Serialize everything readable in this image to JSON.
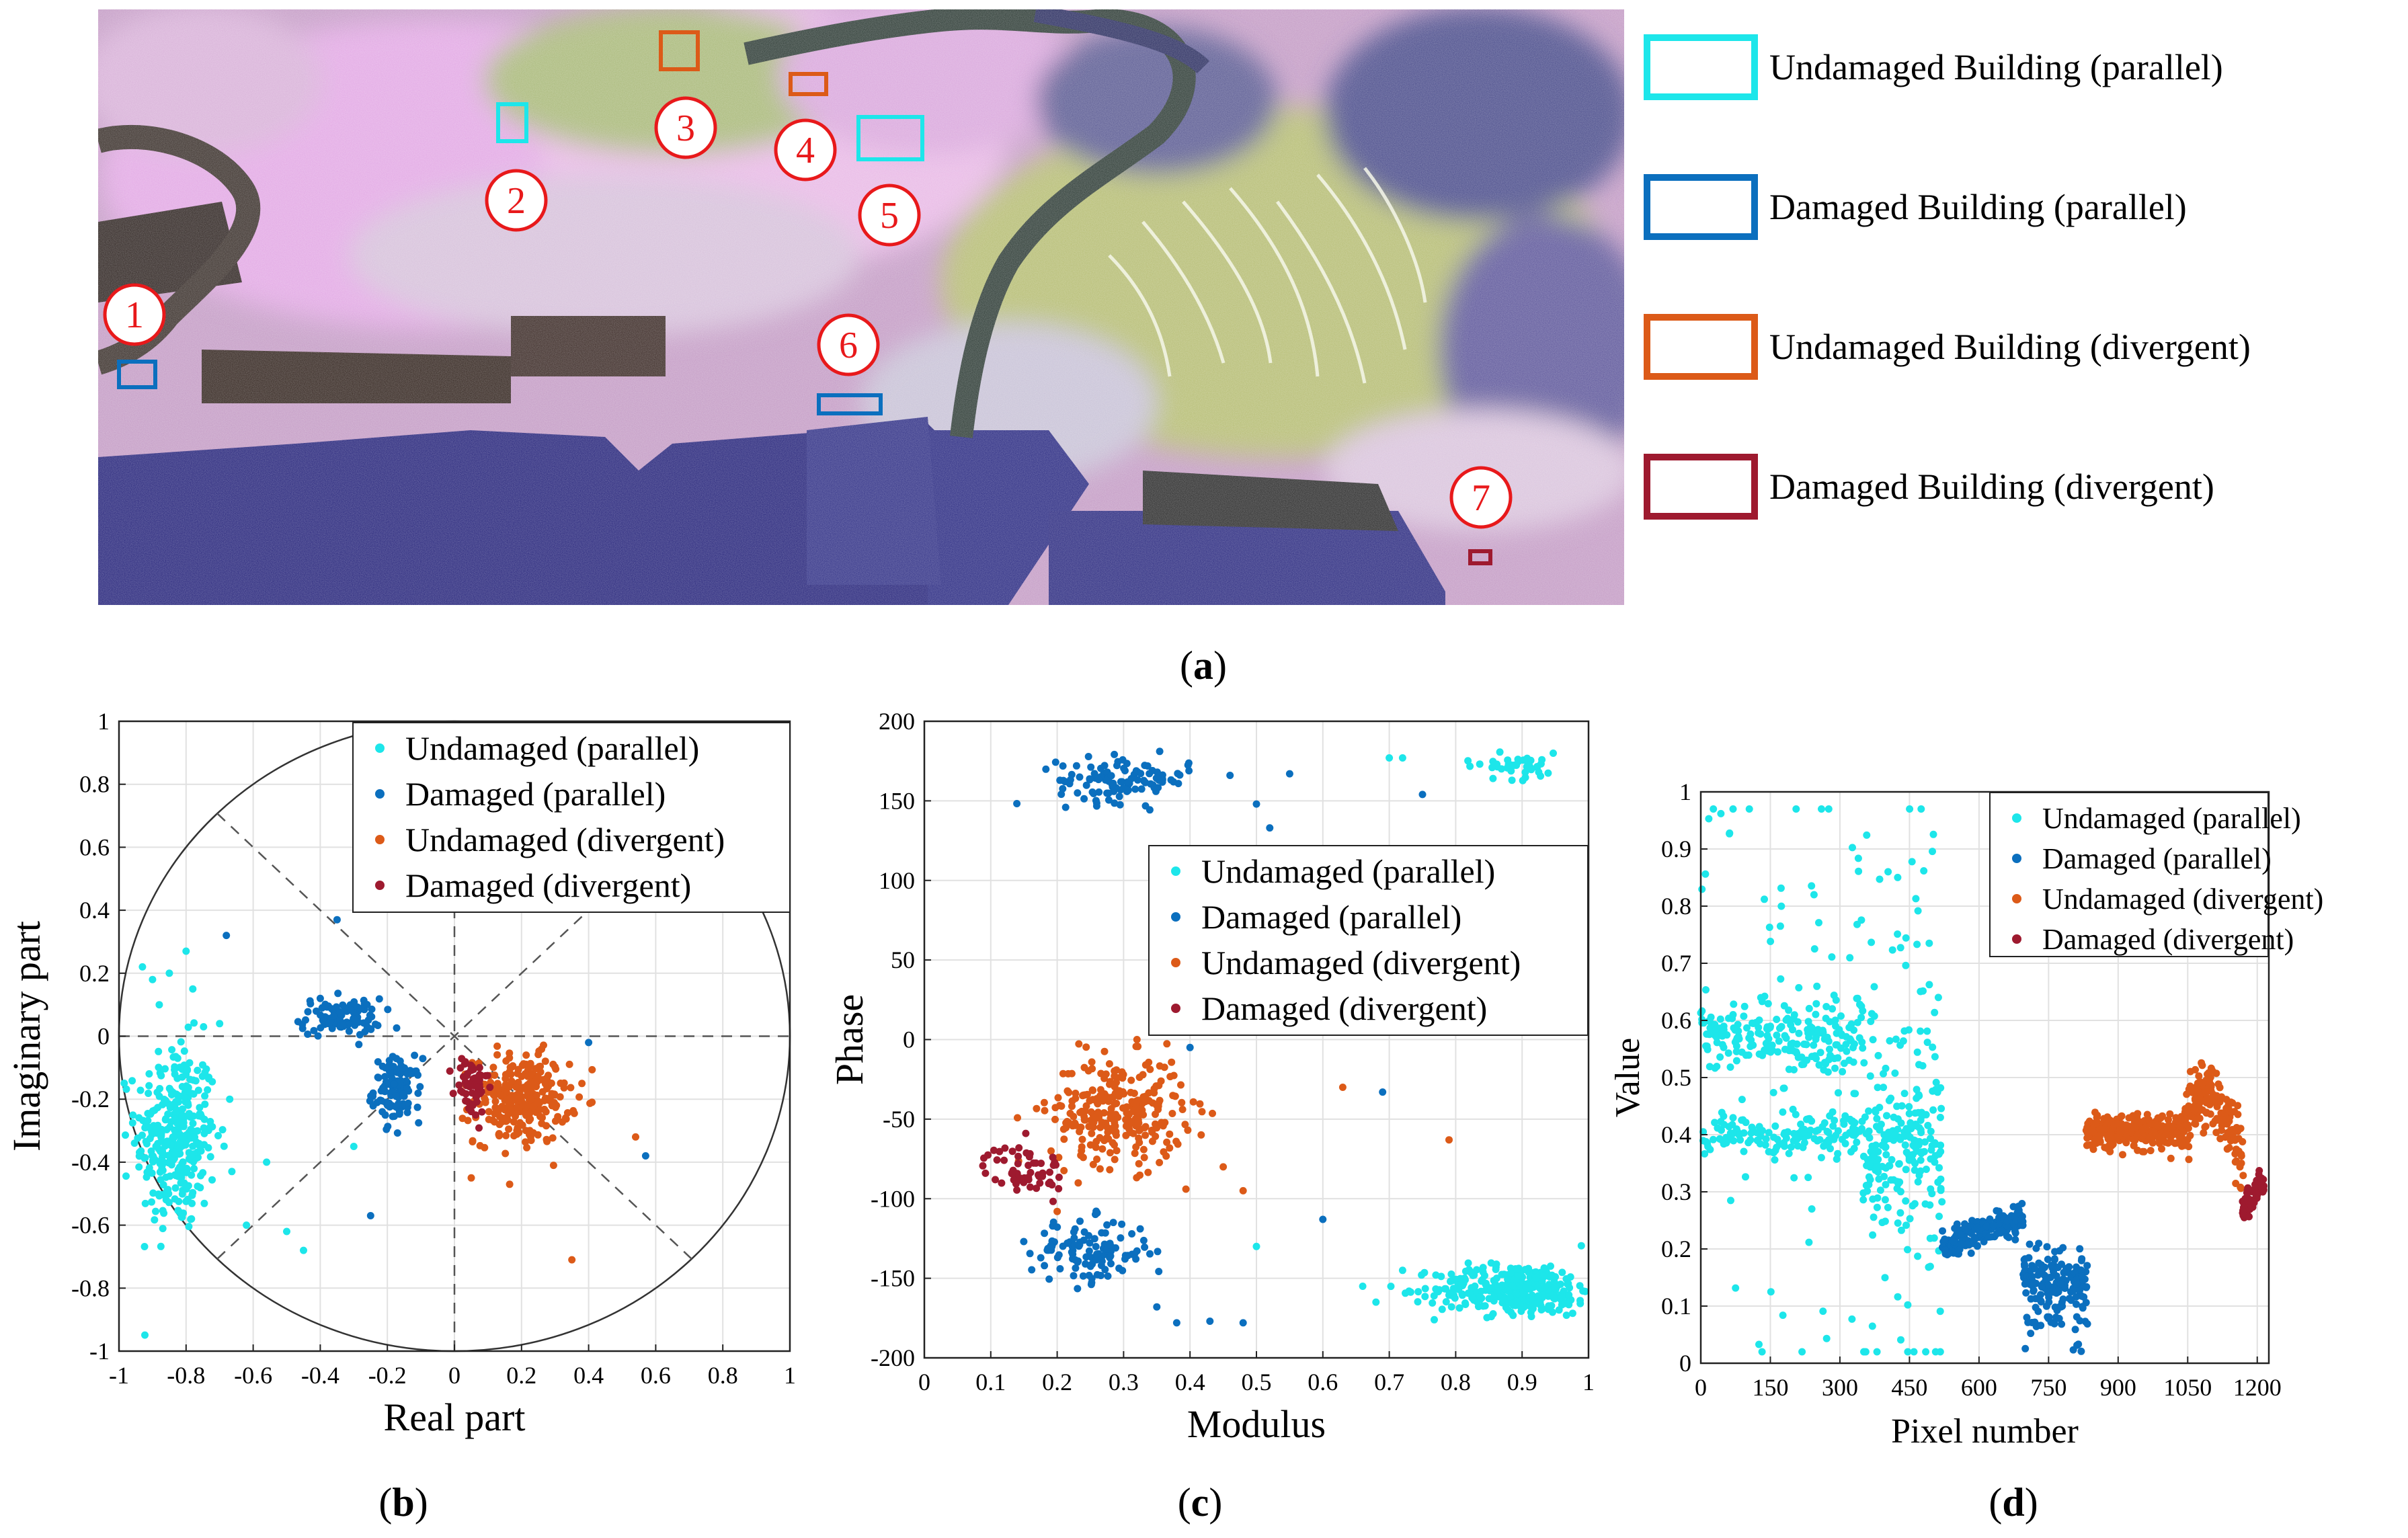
{
  "colors": {
    "undamaged_parallel": "#1de6ea",
    "damaged_parallel": "#0b6fbe",
    "undamaged_divergent": "#dc5a18",
    "damaged_divergent": "#9e1a2f",
    "marker_red": "#e8191b"
  },
  "panel_a": {
    "caption_open": "(",
    "caption_letter": "a",
    "caption_close": ")",
    "markers": [
      "1",
      "2",
      "3",
      "4",
      "5",
      "6",
      "7"
    ],
    "legend": [
      {
        "label": "Undamaged Building (parallel)",
        "color": "#1de6ea"
      },
      {
        "label": "Damaged Building (parallel)",
        "color": "#0b6fbe"
      },
      {
        "label": "Undamaged Building (divergent)",
        "color": "#dc5a18"
      },
      {
        "label": "Damaged Building (divergent)",
        "color": "#9e1a2f"
      }
    ]
  },
  "series_names": [
    "Undamaged (parallel)",
    "Damaged (parallel)",
    "Undamaged (divergent)",
    "Damaged (divergent)"
  ],
  "chart_data": [
    {
      "id": "b",
      "type": "scatter",
      "title": "",
      "caption_letter": "b",
      "xlabel": "Real part",
      "ylabel": "Imaginary part",
      "xlim": [
        -1,
        1
      ],
      "ylim": [
        -1,
        1
      ],
      "xticks": [
        -1,
        -0.8,
        -0.6,
        -0.4,
        -0.2,
        0,
        0.2,
        0.4,
        0.6,
        0.8,
        1
      ],
      "yticks": [
        -1,
        -0.8,
        -0.6,
        -0.4,
        -0.2,
        0,
        0.2,
        0.4,
        0.6,
        0.8,
        1
      ],
      "grid": true,
      "unit_circle": true,
      "legend_position": "top-right",
      "series": [
        {
          "name": "Undamaged (parallel)",
          "color": "#1de6ea",
          "clusters": [
            {
              "cx": -0.83,
              "cy": -0.32,
              "sx": 0.06,
              "sy": 0.15,
              "n": 330
            }
          ],
          "outliers": [
            [
              -0.93,
              0.22
            ],
            [
              -0.9,
              0.18
            ],
            [
              -0.88,
              0.1
            ],
            [
              -0.85,
              0.2
            ],
            [
              -0.8,
              0.27
            ],
            [
              -0.78,
              0.15
            ],
            [
              -0.7,
              0.04
            ],
            [
              -0.62,
              -0.6
            ],
            [
              -0.5,
              -0.62
            ],
            [
              -0.45,
              -0.68
            ],
            [
              -0.3,
              -0.35
            ],
            [
              -0.56,
              -0.4
            ],
            [
              -0.67,
              -0.2
            ]
          ]
        },
        {
          "name": "Damaged (parallel)",
          "color": "#0b6fbe",
          "clusters": [
            {
              "cx": -0.34,
              "cy": 0.06,
              "sx": 0.06,
              "sy": 0.03,
              "n": 90
            },
            {
              "cx": -0.17,
              "cy": -0.17,
              "sx": 0.035,
              "sy": 0.05,
              "n": 110
            }
          ],
          "outliers": [
            [
              -0.68,
              0.32
            ],
            [
              -0.35,
              0.37
            ],
            [
              -0.25,
              -0.57
            ],
            [
              -0.4,
              0.12
            ],
            [
              0.4,
              -0.02
            ],
            [
              0.57,
              -0.38
            ]
          ]
        },
        {
          "name": "Undamaged (divergent)",
          "color": "#dc5a18",
          "clusters": [
            {
              "cx": 0.2,
              "cy": -0.2,
              "sx": 0.07,
              "sy": 0.07,
              "n": 260
            }
          ],
          "outliers": [
            [
              0.54,
              -0.32
            ],
            [
              0.35,
              -0.71
            ],
            [
              0.38,
              -0.15
            ],
            [
              0.05,
              -0.45
            ]
          ]
        },
        {
          "name": "Damaged (divergent)",
          "color": "#9e1a2f",
          "clusters": [
            {
              "cx": 0.05,
              "cy": -0.16,
              "sx": 0.025,
              "sy": 0.05,
              "n": 60
            }
          ],
          "outliers": []
        }
      ]
    },
    {
      "id": "c",
      "type": "scatter",
      "title": "",
      "caption_letter": "c",
      "xlabel": "Modulus",
      "ylabel": "Phase",
      "xlim": [
        0,
        1
      ],
      "ylim": [
        -200,
        200
      ],
      "xticks": [
        0,
        0.1,
        0.2,
        0.3,
        0.4,
        0.5,
        0.6,
        0.7,
        0.8,
        0.9,
        1
      ],
      "yticks": [
        -200,
        -150,
        -100,
        -50,
        0,
        50,
        100,
        150,
        200
      ],
      "grid": true,
      "legend_position": "center-right",
      "series": [
        {
          "name": "Undamaged (parallel)",
          "color": "#1de6ea",
          "clusters": [
            {
              "cx": 0.89,
              "cy": -157,
              "sx": 0.06,
              "sy": 8,
              "n": 330
            },
            {
              "cx": 0.89,
              "cy": 172,
              "sx": 0.04,
              "sy": 4,
              "n": 40
            }
          ],
          "outliers": [
            [
              0.5,
              -130
            ],
            [
              0.68,
              -165
            ],
            [
              0.72,
              -145
            ],
            [
              0.7,
              177
            ],
            [
              0.72,
              177
            ],
            [
              0.66,
              -155
            ]
          ]
        },
        {
          "name": "Damaged (parallel)",
          "color": "#0b6fbe",
          "clusters": [
            {
              "cx": 0.3,
              "cy": 163,
              "sx": 0.05,
              "sy": 7,
              "n": 110
            },
            {
              "cx": 0.25,
              "cy": -133,
              "sx": 0.045,
              "sy": 10,
              "n": 120
            }
          ],
          "outliers": [
            [
              0.35,
              -168
            ],
            [
              0.38,
              -178
            ],
            [
              0.43,
              -177
            ],
            [
              0.48,
              -178
            ],
            [
              0.4,
              -5
            ],
            [
              0.5,
              148
            ],
            [
              0.55,
              167
            ],
            [
              0.6,
              -113
            ],
            [
              0.69,
              -33
            ],
            [
              0.75,
              154
            ],
            [
              0.52,
              133
            ]
          ]
        },
        {
          "name": "Undamaged (divergent)",
          "color": "#dc5a18",
          "clusters": [
            {
              "cx": 0.29,
              "cy": -45,
              "sx": 0.05,
              "sy": 17,
              "n": 280
            }
          ],
          "outliers": [
            [
              0.2,
              -108
            ],
            [
              0.45,
              -80
            ],
            [
              0.48,
              -95
            ],
            [
              0.63,
              -30
            ],
            [
              0.79,
              -63
            ]
          ]
        },
        {
          "name": "Damaged (divergent)",
          "color": "#9e1a2f",
          "clusters": [
            {
              "cx": 0.15,
              "cy": -82,
              "sx": 0.03,
              "sy": 8,
              "n": 60
            }
          ],
          "outliers": []
        }
      ]
    },
    {
      "id": "d",
      "type": "scatter",
      "title": "",
      "caption_letter": "d",
      "xlabel": "Pixel number",
      "ylabel": "Value",
      "xlim": [
        0,
        1225
      ],
      "ylim": [
        0,
        1
      ],
      "xticks": [
        0,
        150,
        300,
        450,
        600,
        750,
        900,
        1050,
        1200
      ],
      "yticks": [
        0,
        0.1,
        0.2,
        0.3,
        0.4,
        0.5,
        0.6,
        0.7,
        0.8,
        0.9,
        1
      ],
      "grid": true,
      "legend_position": "top-right",
      "series": [
        {
          "name": "Undamaged (parallel)",
          "color": "#1de6ea",
          "segments": [
            {
              "x0": 0,
              "x1": 350,
              "n": 190,
              "level": 0.57,
              "jitter": 0.03
            },
            {
              "x0": 0,
              "x1": 350,
              "n": 140,
              "level": 0.4,
              "jitter": 0.02
            },
            {
              "x0": 0,
              "x1": 350,
              "n": 80,
              "level": 0.6,
              "jitter": 0.3
            },
            {
              "x0": 350,
              "x1": 520,
              "n": 170,
              "level": 0.38,
              "jitter": 0.06
            },
            {
              "x0": 350,
              "x1": 520,
              "n": 100,
              "level": 0.45,
              "jitter": 0.3
            }
          ]
        },
        {
          "name": "Damaged (parallel)",
          "color": "#0b6fbe",
          "segments": [
            {
              "x0": 520,
              "x1": 695,
              "n": 200,
              "level": 0.205,
              "slope": 0.05,
              "jitter": 0.012
            },
            {
              "x0": 695,
              "x1": 835,
              "n": 180,
              "level": 0.15,
              "jitter": 0.025,
              "spread_low": 0.04
            }
          ]
        },
        {
          "name": "Undamaged (divergent)",
          "color": "#dc5a18",
          "segments": [
            {
              "x0": 830,
              "x1": 1035,
              "n": 250,
              "level": 0.405,
              "jitter": 0.015
            },
            {
              "x0": 1035,
              "x1": 1170,
              "n": 180,
              "level": 0.42,
              "jitter": 0.03,
              "hump": 0.07
            }
          ]
        },
        {
          "name": "Damaged (divergent)",
          "color": "#9e1a2f",
          "segments": [
            {
              "x0": 1165,
              "x1": 1215,
              "n": 60,
              "level": 0.27,
              "slope": 0.04,
              "jitter": 0.012
            }
          ]
        }
      ]
    }
  ]
}
